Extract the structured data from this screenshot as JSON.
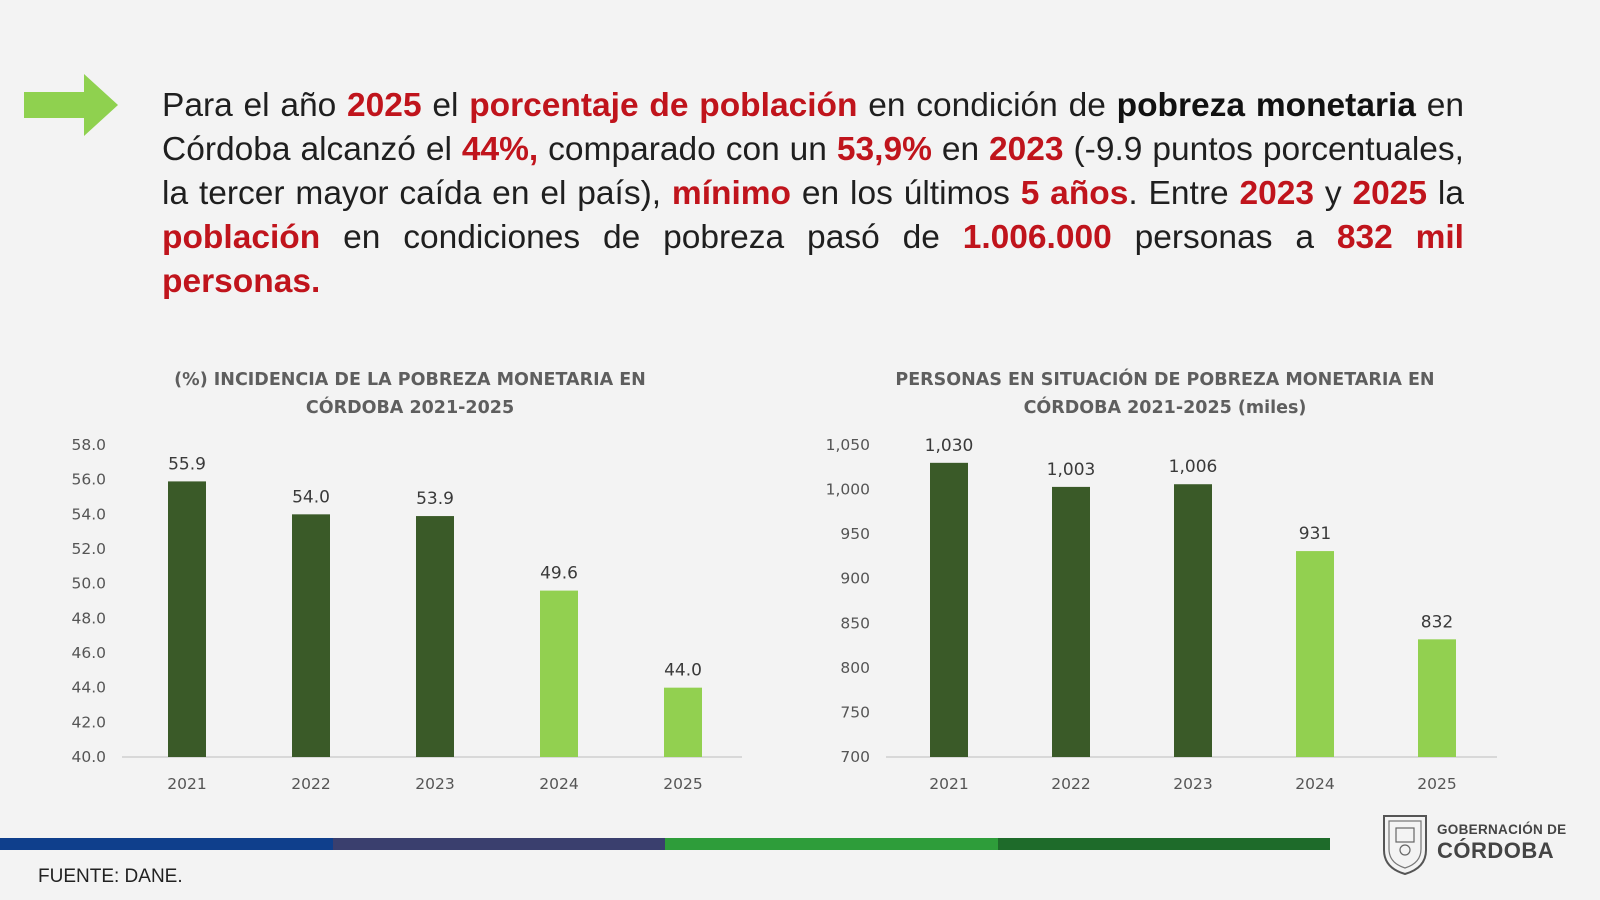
{
  "headline": {
    "segments": [
      {
        "text": "Para el año ",
        "style": "plain"
      },
      {
        "text": "2025",
        "style": "red"
      },
      {
        "text": " el ",
        "style": "plain"
      },
      {
        "text": "porcentaje de población",
        "style": "red"
      },
      {
        "text": " en condición de ",
        "style": "plain"
      },
      {
        "text": "pobreza monetaria",
        "style": "bold"
      },
      {
        "text": " en Córdoba alcanzó el ",
        "style": "plain"
      },
      {
        "text": "44%,",
        "style": "red"
      },
      {
        "text": " comparado con un ",
        "style": "plain"
      },
      {
        "text": "53,9%",
        "style": "red"
      },
      {
        "text": " en ",
        "style": "plain"
      },
      {
        "text": "2023",
        "style": "red"
      },
      {
        "text": " (-9.9 puntos porcentuales, la tercer mayor caída en el país), ",
        "style": "plain"
      },
      {
        "text": "mínimo",
        "style": "red"
      },
      {
        "text": " en los últimos ",
        "style": "plain"
      },
      {
        "text": "5 años",
        "style": "red"
      },
      {
        "text": ". Entre ",
        "style": "plain"
      },
      {
        "text": "2023",
        "style": "red"
      },
      {
        "text": " y ",
        "style": "plain"
      },
      {
        "text": "2025",
        "style": "red"
      },
      {
        "text": " la ",
        "style": "plain"
      },
      {
        "text": "población",
        "style": "red"
      },
      {
        "text": " en condiciones de pobreza pasó de ",
        "style": "plain"
      },
      {
        "text": "1.006.000",
        "style": "red"
      },
      {
        "text": " personas a ",
        "style": "plain"
      },
      {
        "text": "832 mil personas.",
        "style": "red"
      }
    ]
  },
  "colors": {
    "arrow": "#8fd14f",
    "bar_dark": "#3a5a28",
    "bar_light": "#92d050",
    "highlight_red": "#c0141c",
    "footer_stripes": [
      "#0f3f8c",
      "#3a3f6e",
      "#2e9d3a",
      "#1e6b2a"
    ]
  },
  "chart_data": [
    {
      "type": "bar",
      "title": "(%) INCIDENCIA DE LA POBREZA MONETARIA EN CÓRDOBA 2021-2025",
      "categories": [
        "2021",
        "2022",
        "2023",
        "2024",
        "2025"
      ],
      "values": [
        55.9,
        54.0,
        53.9,
        49.6,
        44.0
      ],
      "value_labels": [
        "55.9",
        "54.0",
        "53.9",
        "49.6",
        "44.0"
      ],
      "bar_shades": [
        "dark",
        "dark",
        "dark",
        "light",
        "light"
      ],
      "ylim": [
        40,
        58
      ],
      "yticks": [
        "40.0",
        "42.0",
        "44.0",
        "46.0",
        "48.0",
        "50.0",
        "52.0",
        "54.0",
        "56.0",
        "58.0"
      ],
      "ytick_values": [
        40,
        42,
        44,
        46,
        48,
        50,
        52,
        54,
        56,
        58
      ],
      "grid": false
    },
    {
      "type": "bar",
      "title": "PERSONAS EN SITUACIÓN DE POBREZA MONETARIA EN CÓRDOBA 2021-2025 (miles)",
      "categories": [
        "2021",
        "2022",
        "2023",
        "2024",
        "2025"
      ],
      "values": [
        1030,
        1003,
        1006,
        931,
        832
      ],
      "value_labels": [
        "1,030",
        "1,003",
        "1,006",
        "931",
        "832"
      ],
      "bar_shades": [
        "dark",
        "dark",
        "dark",
        "light",
        "light"
      ],
      "ylim": [
        700,
        1050
      ],
      "yticks": [
        "700",
        "750",
        "800",
        "850",
        "900",
        "950",
        "1,000",
        "1,050"
      ],
      "ytick_values": [
        700,
        750,
        800,
        850,
        900,
        950,
        1000,
        1050
      ],
      "grid": false
    }
  ],
  "footer": {
    "source": "FUENTE: DANE.",
    "logo_line1": "GOBERNACIÓN DE",
    "logo_line2": "CÓRDOBA"
  }
}
